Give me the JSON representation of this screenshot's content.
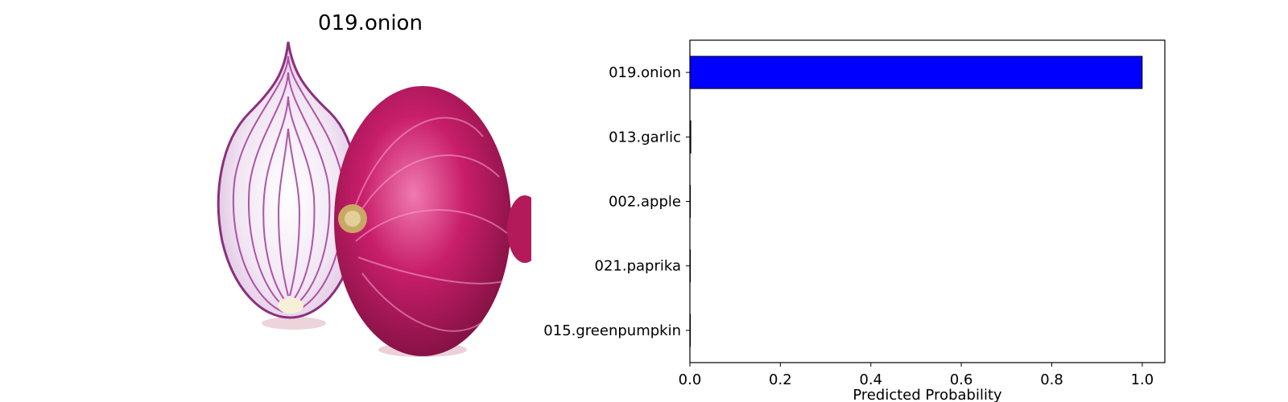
{
  "image_panel": {
    "title": "019.onion",
    "photo_subject": "red onion, whole bulb and halved cross-section"
  },
  "colors": {
    "bar_fill": "#0000ff",
    "bar_edge": "#000000",
    "onion_dark": "#8e1448",
    "onion_mid": "#c21c66",
    "onion_light": "#e86aa3",
    "onion_inner": "#f3e8f4",
    "onion_ring": "#a53a9a"
  },
  "chart_data": {
    "type": "bar",
    "orientation": "horizontal",
    "categories": [
      "019.onion",
      "013.garlic",
      "002.apple",
      "021.paprika",
      "015.greenpumpkin"
    ],
    "values": [
      0.9999,
      0.002,
      0.0002,
      0.0001,
      0.0001
    ],
    "xlabel": "Predicted Probability",
    "ylabel": "",
    "xlim": [
      0,
      1.05
    ],
    "xticks": [
      "0.0",
      "0.2",
      "0.4",
      "0.6",
      "0.8",
      "1.0"
    ],
    "grid": false,
    "legend": "none"
  }
}
